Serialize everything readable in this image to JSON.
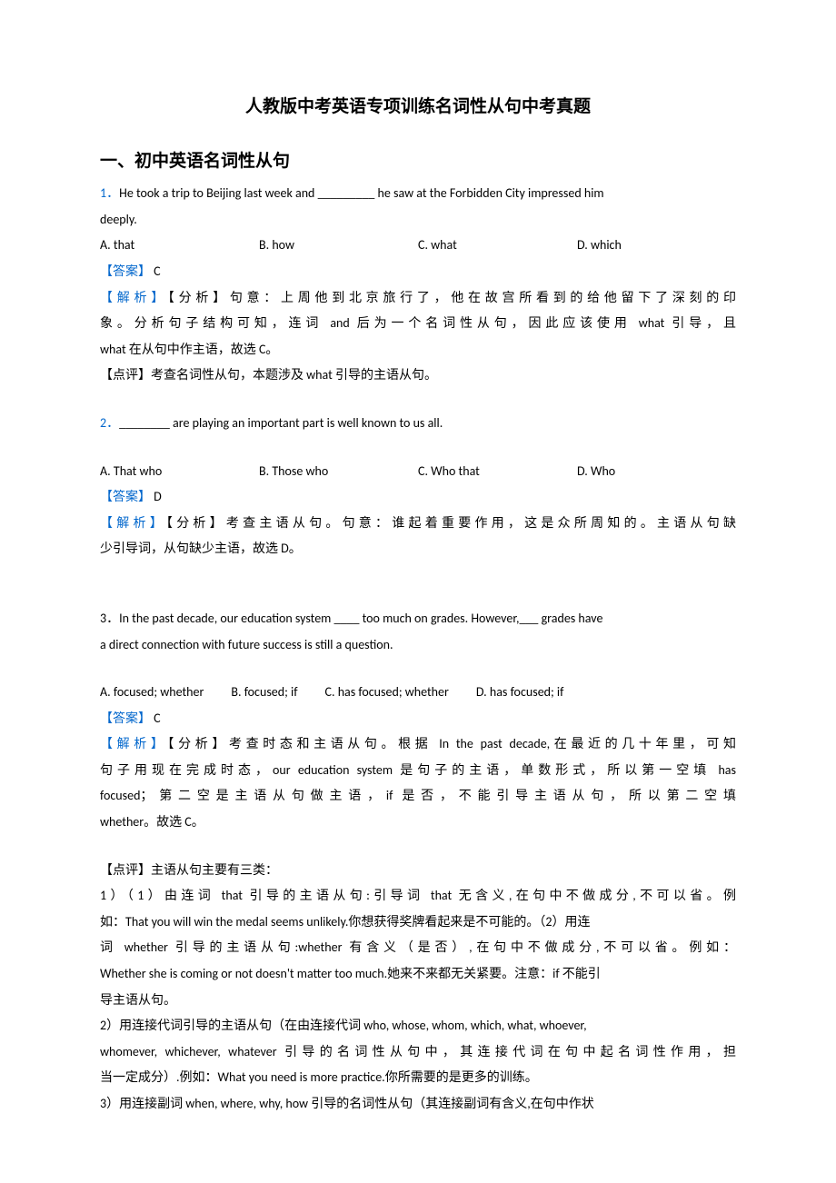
{
  "title": "人教版中考英语专项训练名词性从句中考真题",
  "section_heading": "一、初中英语名词性从句",
  "label_answer": "【答案】",
  "label_analysis": "【解析】",
  "label_comment": "【点评】",
  "q1": {
    "num": "1．",
    "stem_line1": "He took a trip to Beijing last week and _________ he saw at the Forbidden City impressed him",
    "stem_line2": "deeply.",
    "optA": "A. that",
    "optB": "B. how",
    "optC": "C. what",
    "optD": "D. which",
    "answer": " C",
    "analysis_prefix": "【分析】",
    "analysis_l1": "句意：上周他到北京旅行了，他在故宫所看到的给他留下了深刻的印",
    "analysis_l2": "象。分析句子结构可知，连词 and 后为一个名词性从句，因此应该使用 what 引导，且",
    "analysis_l3": "what 在从句中作主语，故选 C。",
    "comment": "考查名词性从句，本题涉及 what 引导的主语从句。"
  },
  "q2": {
    "num": "2．",
    "stem": "________ are playing an important part is well known to us all.",
    "optA": "A. That who",
    "optB": "B. Those who",
    "optC": "C. Who that",
    "optD": "D. Who",
    "answer": " D",
    "analysis_prefix": "【分析】",
    "analysis_l1": "考查主语从句。句意：谁起着重要作用，这是众所周知的。主语从句缺",
    "analysis_l2": "少引导词，从句缺少主语，故选 D。"
  },
  "q3": {
    "num": "3．",
    "stem_l1": "In the past decade, our education system ____ too much on grades. However,___ grades have",
    "stem_l2": "a direct connection with future success is still a question.",
    "optA": "A. focused; whether",
    "optB": "B. focused; if",
    "optC": "C. has focused; whether",
    "optD": "D. has focused; if",
    "answer": " C",
    "analysis_prefix": "【分析】",
    "analysis_l1": "考查时态和主语从句。根据 In the past decade,在最近的几十年里，可知",
    "analysis_l2": "句子用现在完成时态，our education system 是句子的主语，单数形式，所以第一空填 has",
    "analysis_l3": "focused；第二空是主语从句做主语，if 是否，不能引导主语从句，所以第二空填",
    "analysis_l4": "whether。故选 C。",
    "comment_heading": "主语从句主要有三类：",
    "c_l1": "1）（1）由连词 that 引导的主语从句:引导词 that 无含义,在句中不做成分,不可以省。例",
    "c_l2": "如：That you will win the medal seems unlikely.你想获得奖牌看起来是不可能的。（2）用连",
    "c_l3": "词 whether 引导的主语从句:whether 有含义（是否）,在句中不做成分,不可以省。例如：",
    "c_l4": "Whether she is coming or not doesn't matter too much.她来不来都无关紧要。注意：if 不能引",
    "c_l5": "导主语从句。",
    "c_l6": "2）用连接代词引导的主语从句（在由连接代词 who, whose, whom, which, what, whoever,",
    "c_l7": "whomever, whichever, whatever 引导的名词性从句中，其连接代词在句中起名词性作用，担",
    "c_l8": "当一定成分）.例如：What you need is more practice.你所需要的是更多的训练。",
    "c_l9": "3）用连接副词 when, where, why, how 引导的名词性从句（其连接副词有含义,在句中作状"
  }
}
